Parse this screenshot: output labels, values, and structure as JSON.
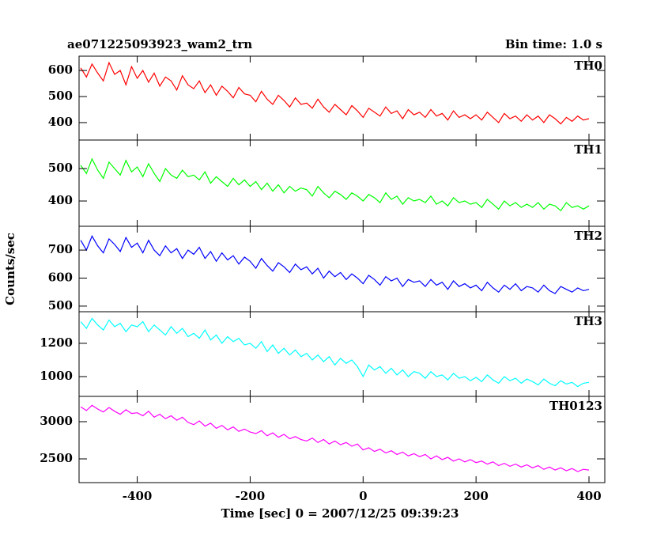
{
  "chart_data": {
    "type": "line",
    "title": "ae071225093923_wam2_trn",
    "subtitle": "Bin time: 1.0 s",
    "xlabel": "Time [sec] 0 = 2007/12/25 09:39:23",
    "ylabel": "Counts/sec",
    "xlim": [
      -503,
      428
    ],
    "xticks": [
      -400,
      -200,
      0,
      200,
      400
    ],
    "x": [
      -500,
      -490,
      -480,
      -470,
      -460,
      -450,
      -440,
      -430,
      -420,
      -410,
      -400,
      -390,
      -380,
      -370,
      -360,
      -350,
      -340,
      -330,
      -320,
      -310,
      -300,
      -290,
      -280,
      -270,
      -260,
      -250,
      -240,
      -230,
      -220,
      -210,
      -200,
      -190,
      -180,
      -170,
      -160,
      -150,
      -140,
      -130,
      -120,
      -110,
      -100,
      -90,
      -80,
      -70,
      -60,
      -50,
      -40,
      -30,
      -20,
      -10,
      0,
      10,
      20,
      30,
      40,
      50,
      60,
      70,
      80,
      90,
      100,
      110,
      120,
      130,
      140,
      150,
      160,
      170,
      180,
      190,
      200,
      210,
      220,
      230,
      240,
      250,
      260,
      270,
      280,
      290,
      300,
      310,
      320,
      330,
      340,
      350,
      360,
      370,
      380,
      390,
      400
    ],
    "series": [
      {
        "name": "TH0",
        "color": "#ff0000",
        "ylim": [
          333,
          655
        ],
        "yticks": [
          400,
          500,
          600
        ],
        "values": [
          610,
          575,
          625,
          590,
          560,
          630,
          585,
          600,
          545,
          615,
          570,
          600,
          555,
          590,
          540,
          575,
          560,
          525,
          580,
          545,
          530,
          560,
          515,
          545,
          505,
          540,
          520,
          495,
          535,
          510,
          505,
          480,
          520,
          490,
          470,
          505,
          485,
          460,
          495,
          470,
          475,
          455,
          490,
          460,
          440,
          470,
          450,
          430,
          465,
          445,
          420,
          455,
          440,
          425,
          460,
          435,
          445,
          415,
          450,
          430,
          440,
          420,
          450,
          425,
          435,
          410,
          445,
          420,
          430,
          415,
          430,
          410,
          440,
          420,
          400,
          435,
          415,
          425,
          405,
          430,
          410,
          425,
          400,
          430,
          415,
          395,
          420,
          405,
          425,
          410,
          415
        ]
      },
      {
        "name": "TH1",
        "color": "#00ff00",
        "ylim": [
          322,
          588
        ],
        "yticks": [
          400,
          500
        ],
        "values": [
          510,
          485,
          530,
          495,
          470,
          520,
          500,
          480,
          525,
          490,
          505,
          475,
          515,
          485,
          460,
          500,
          480,
          470,
          495,
          475,
          480,
          465,
          490,
          455,
          475,
          460,
          445,
          470,
          450,
          465,
          445,
          460,
          435,
          455,
          430,
          450,
          425,
          445,
          430,
          440,
          435,
          415,
          445,
          425,
          410,
          430,
          420,
          405,
          425,
          415,
          400,
          420,
          410,
          395,
          425,
          405,
          415,
          390,
          410,
          400,
          405,
          395,
          415,
          390,
          400,
          385,
          410,
          395,
          400,
          390,
          395,
          380,
          405,
          390,
          375,
          400,
          385,
          395,
          380,
          390,
          380,
          395,
          375,
          390,
          385,
          370,
          395,
          380,
          385,
          375,
          385
        ]
      },
      {
        "name": "TH2",
        "color": "#0000ff",
        "ylim": [
          480,
          785
        ],
        "yticks": [
          500,
          600,
          700
        ],
        "values": [
          735,
          700,
          750,
          715,
          690,
          740,
          720,
          695,
          745,
          710,
          725,
          690,
          735,
          700,
          680,
          715,
          690,
          705,
          670,
          700,
          685,
          710,
          670,
          695,
          660,
          690,
          665,
          680,
          650,
          675,
          660,
          635,
          670,
          645,
          625,
          655,
          640,
          620,
          650,
          630,
          640,
          615,
          635,
          600,
          625,
          605,
          620,
          595,
          615,
          600,
          580,
          610,
          595,
          575,
          605,
          590,
          600,
          570,
          595,
          585,
          590,
          570,
          595,
          575,
          585,
          560,
          590,
          570,
          580,
          565,
          575,
          555,
          585,
          565,
          550,
          575,
          560,
          580,
          555,
          570,
          565,
          550,
          575,
          555,
          545,
          570,
          560,
          550,
          565,
          555,
          560
        ]
      },
      {
        "name": "TH3",
        "color": "#00ffff",
        "ylim": [
          881,
          1390
        ],
        "yticks": [
          1000,
          1200
        ],
        "values": [
          1330,
          1290,
          1350,
          1310,
          1280,
          1340,
          1300,
          1320,
          1270,
          1310,
          1300,
          1330,
          1270,
          1310,
          1280,
          1250,
          1300,
          1260,
          1290,
          1240,
          1260,
          1230,
          1280,
          1220,
          1250,
          1200,
          1240,
          1210,
          1230,
          1190,
          1200,
          1170,
          1210,
          1150,
          1190,
          1140,
          1170,
          1130,
          1160,
          1120,
          1140,
          1100,
          1130,
          1090,
          1120,
          1070,
          1110,
          1080,
          1100,
          1060,
          1000,
          1070,
          1040,
          1060,
          1020,
          1050,
          1010,
          1040,
          1000,
          1030,
          1020,
          990,
          1030,
          1000,
          1010,
          980,
          1020,
          990,
          1000,
          975,
          995,
          970,
          1010,
          980,
          960,
          1000,
          975,
          990,
          960,
          985,
          970,
          950,
          985,
          960,
          945,
          975,
          955,
          965,
          940,
          960,
          965
        ]
      },
      {
        "name": "TH0123",
        "color": "#ff00ff",
        "ylim": [
          2181,
          3340
        ],
        "yticks": [
          2500,
          3000
        ],
        "values": [
          3200,
          3150,
          3220,
          3170,
          3130,
          3190,
          3140,
          3100,
          3160,
          3110,
          3120,
          3080,
          3140,
          3060,
          3100,
          3040,
          3080,
          3020,
          3060,
          2990,
          2960,
          3010,
          2940,
          2980,
          2910,
          2950,
          2890,
          2930,
          2870,
          2900,
          2860,
          2840,
          2880,
          2810,
          2850,
          2790,
          2830,
          2770,
          2800,
          2760,
          2740,
          2780,
          2720,
          2760,
          2700,
          2740,
          2690,
          2720,
          2670,
          2700,
          2620,
          2650,
          2600,
          2630,
          2580,
          2610,
          2560,
          2590,
          2540,
          2570,
          2530,
          2560,
          2500,
          2540,
          2490,
          2520,
          2470,
          2500,
          2460,
          2490,
          2450,
          2470,
          2430,
          2460,
          2410,
          2440,
          2400,
          2430,
          2390,
          2420,
          2380,
          2410,
          2360,
          2390,
          2350,
          2380,
          2340,
          2370,
          2330,
          2360,
          2350
        ]
      }
    ]
  }
}
